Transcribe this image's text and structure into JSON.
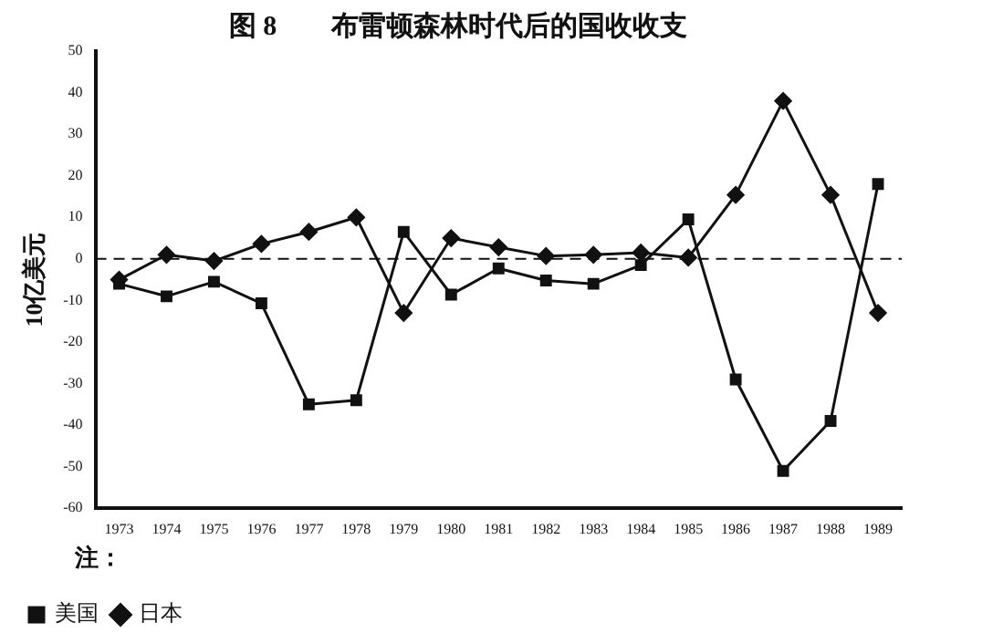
{
  "chart_data": {
    "type": "line",
    "title": "图 8　　布雷顿森林时代后的国收收支",
    "ylabel": "10亿美元",
    "legend_title": "注：",
    "categories": [
      "1973",
      "1974",
      "1975",
      "1976",
      "1977",
      "1978",
      "1979",
      "1980",
      "1981",
      "1982",
      "1983",
      "1984",
      "1985",
      "1986",
      "1987",
      "1988",
      "1989"
    ],
    "series": [
      {
        "name": "美国",
        "color": "#111111",
        "marker": "square",
        "values": [
          -6,
          -9,
          -5.5,
          -10.7,
          -35,
          -34,
          6.5,
          -8.6,
          -2.3,
          -5.2,
          -6,
          -1.5,
          9.5,
          -29,
          -51,
          -39,
          18
        ]
      },
      {
        "name": "日本",
        "color": "#111111",
        "marker": "diamond",
        "values": [
          -5,
          1,
          -0.5,
          3.6,
          6.5,
          10,
          -13,
          5,
          2.8,
          0.7,
          1,
          1.5,
          0.3,
          15.4,
          38,
          15.4,
          -13
        ]
      }
    ],
    "ylim": [
      -60,
      50
    ],
    "yticks": [
      -60,
      -50,
      -40,
      -30,
      -20,
      -10,
      0,
      10,
      20,
      30,
      40,
      50
    ],
    "ref_lines": [
      {
        "axis": "y",
        "value": 0,
        "line_style": "dashed",
        "color": "#111111"
      }
    ],
    "grid": false,
    "legend": "bottom left",
    "line_style": "solid"
  }
}
